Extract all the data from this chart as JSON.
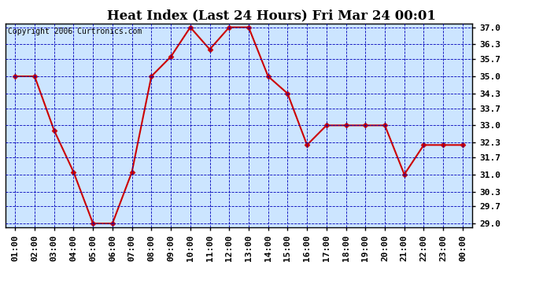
{
  "title": "Heat Index (Last 24 Hours) Fri Mar 24 00:01",
  "copyright": "Copyright 2006 Curtronics.com",
  "x_labels": [
    "01:00",
    "02:00",
    "03:00",
    "04:00",
    "05:00",
    "06:00",
    "07:00",
    "08:00",
    "09:00",
    "10:00",
    "11:00",
    "12:00",
    "13:00",
    "14:00",
    "15:00",
    "16:00",
    "17:00",
    "18:00",
    "19:00",
    "20:00",
    "21:00",
    "22:00",
    "23:00",
    "00:00"
  ],
  "y_values": [
    35.0,
    35.0,
    32.8,
    31.1,
    29.0,
    29.0,
    31.1,
    35.0,
    35.8,
    37.0,
    36.1,
    37.0,
    37.0,
    35.0,
    34.3,
    32.2,
    33.0,
    33.0,
    33.0,
    33.0,
    31.0,
    32.2,
    32.2,
    32.2
  ],
  "y_min": 29.0,
  "y_max": 37.0,
  "y_ticks": [
    29.0,
    29.7,
    30.3,
    31.0,
    31.7,
    32.3,
    33.0,
    33.7,
    34.3,
    35.0,
    35.7,
    36.3,
    37.0
  ],
  "line_color": "#cc0000",
  "marker_color": "#cc0000",
  "fig_bg_color": "#ffffff",
  "plot_bg_color": "#cce5ff",
  "grid_color": "#0000bb",
  "border_color": "#000000",
  "title_fontsize": 12,
  "copyright_fontsize": 7,
  "tick_label_fontsize": 8
}
